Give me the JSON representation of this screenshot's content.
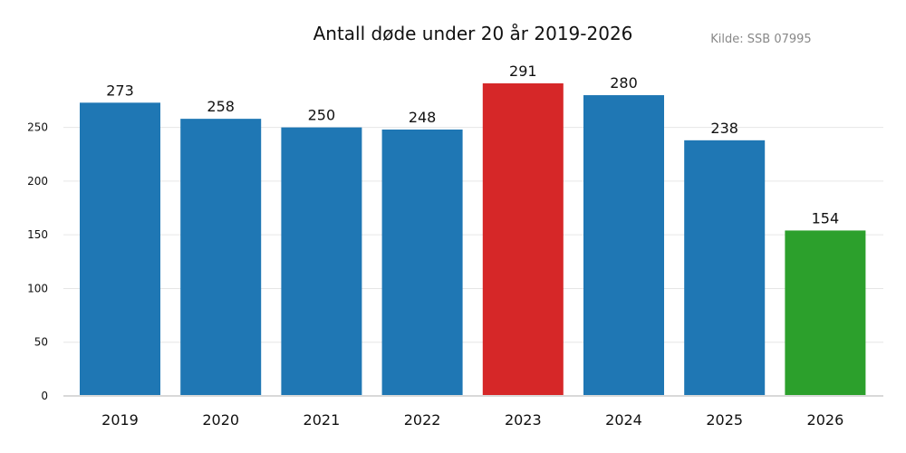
{
  "chart_data": {
    "type": "bar",
    "title": "Antall døde under 20 år 2019-2026",
    "source": "Kilde: SSB 07995",
    "xlabel": "",
    "ylabel": "",
    "categories": [
      "2019",
      "2020",
      "2021",
      "2022",
      "2023",
      "2024",
      "2025",
      "2026"
    ],
    "values": [
      273,
      258,
      250,
      248,
      291,
      280,
      238,
      154
    ],
    "colors": [
      "#1f77b4",
      "#1f77b4",
      "#1f77b4",
      "#1f77b4",
      "#d62728",
      "#1f77b4",
      "#1f77b4",
      "#2ca02c"
    ],
    "ylim": [
      0,
      291
    ],
    "yticks": [
      0,
      50,
      100,
      150,
      200,
      250
    ],
    "grid": true,
    "legend": "none"
  }
}
